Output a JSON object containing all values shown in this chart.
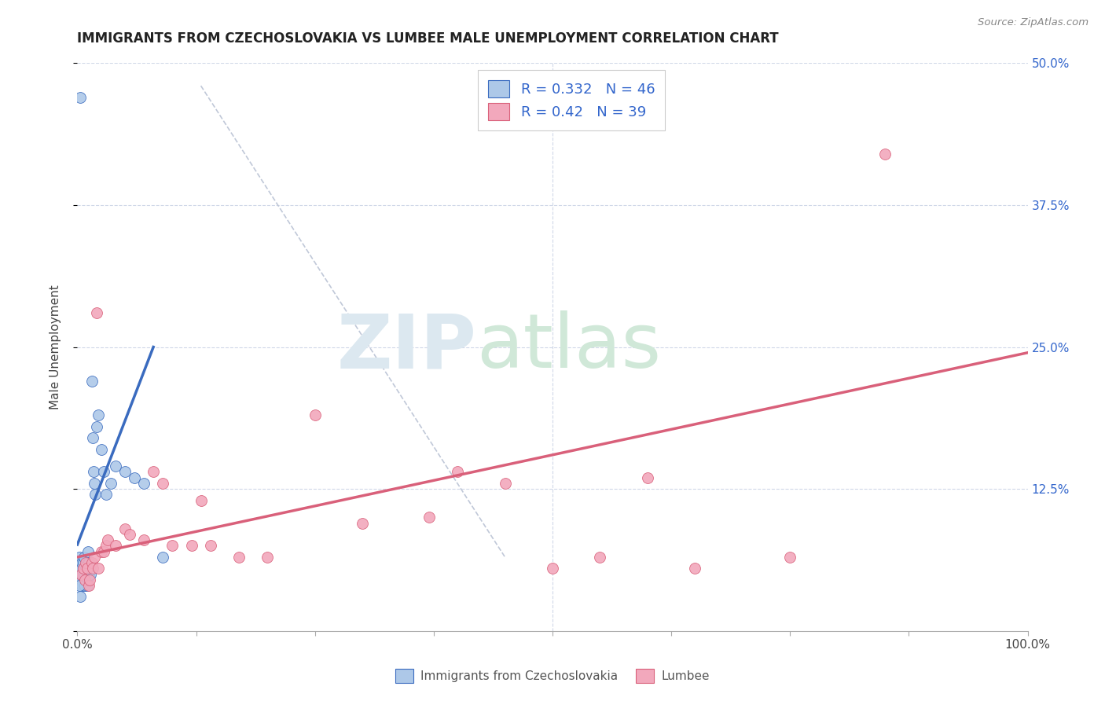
{
  "title": "IMMIGRANTS FROM CZECHOSLOVAKIA VS LUMBEE MALE UNEMPLOYMENT CORRELATION CHART",
  "source": "Source: ZipAtlas.com",
  "ylabel": "Male Unemployment",
  "R1": 0.332,
  "N1": 46,
  "R2": 0.42,
  "N2": 39,
  "color1": "#adc8e8",
  "color2": "#f2a8bc",
  "line1_color": "#3a6bbf",
  "line2_color": "#d9607a",
  "dash_color": "#c0c8d8",
  "background_color": "#ffffff",
  "grid_color": "#d0d8e8",
  "legend1_label": "Immigrants from Czechoslovakia",
  "legend2_label": "Lumbee",
  "xlim": [
    0.0,
    1.0
  ],
  "ylim": [
    0.0,
    0.5
  ],
  "ytick_positions": [
    0.0,
    0.125,
    0.25,
    0.375,
    0.5
  ],
  "ytick_labels": [
    "",
    "12.5%",
    "25.0%",
    "37.5%",
    "50.0%"
  ],
  "xtick_positions": [
    0.0,
    0.125,
    0.25,
    0.375,
    0.5,
    0.625,
    0.75,
    0.875,
    1.0
  ],
  "xtick_labels": [
    "0.0%",
    "",
    "",
    "",
    "",
    "",
    "",
    "",
    "100.0%"
  ],
  "blue_line": [
    [
      0.0,
      0.076
    ],
    [
      0.08,
      0.25
    ]
  ],
  "pink_line": [
    [
      0.0,
      0.065
    ],
    [
      1.0,
      0.245
    ]
  ],
  "dash_line": [
    [
      0.13,
      0.48
    ],
    [
      0.45,
      0.065
    ]
  ],
  "scatter1_x": [
    0.003,
    0.002,
    0.002,
    0.003,
    0.003,
    0.004,
    0.004,
    0.005,
    0.005,
    0.005,
    0.006,
    0.006,
    0.007,
    0.007,
    0.007,
    0.008,
    0.008,
    0.009,
    0.009,
    0.01,
    0.01,
    0.01,
    0.011,
    0.011,
    0.012,
    0.012,
    0.013,
    0.014,
    0.015,
    0.016,
    0.017,
    0.018,
    0.019,
    0.02,
    0.022,
    0.025,
    0.028,
    0.03,
    0.035,
    0.04,
    0.05,
    0.06,
    0.07,
    0.09,
    0.002,
    0.003
  ],
  "scatter1_y": [
    0.47,
    0.055,
    0.065,
    0.045,
    0.055,
    0.045,
    0.055,
    0.05,
    0.06,
    0.04,
    0.05,
    0.06,
    0.055,
    0.04,
    0.065,
    0.05,
    0.04,
    0.045,
    0.055,
    0.04,
    0.045,
    0.05,
    0.06,
    0.07,
    0.05,
    0.06,
    0.055,
    0.05,
    0.22,
    0.17,
    0.14,
    0.13,
    0.12,
    0.18,
    0.19,
    0.16,
    0.14,
    0.12,
    0.13,
    0.145,
    0.14,
    0.135,
    0.13,
    0.065,
    0.04,
    0.03
  ],
  "scatter2_x": [
    0.004,
    0.006,
    0.008,
    0.009,
    0.01,
    0.012,
    0.013,
    0.015,
    0.016,
    0.018,
    0.02,
    0.022,
    0.025,
    0.028,
    0.03,
    0.032,
    0.04,
    0.05,
    0.055,
    0.07,
    0.08,
    0.09,
    0.1,
    0.12,
    0.13,
    0.14,
    0.17,
    0.2,
    0.25,
    0.3,
    0.37,
    0.4,
    0.45,
    0.5,
    0.55,
    0.6,
    0.65,
    0.75,
    0.85
  ],
  "scatter2_y": [
    0.05,
    0.055,
    0.045,
    0.06,
    0.055,
    0.04,
    0.045,
    0.06,
    0.055,
    0.065,
    0.28,
    0.055,
    0.07,
    0.07,
    0.075,
    0.08,
    0.075,
    0.09,
    0.085,
    0.08,
    0.14,
    0.13,
    0.075,
    0.075,
    0.115,
    0.075,
    0.065,
    0.065,
    0.19,
    0.095,
    0.1,
    0.14,
    0.13,
    0.055,
    0.065,
    0.135,
    0.055,
    0.065,
    0.42
  ]
}
